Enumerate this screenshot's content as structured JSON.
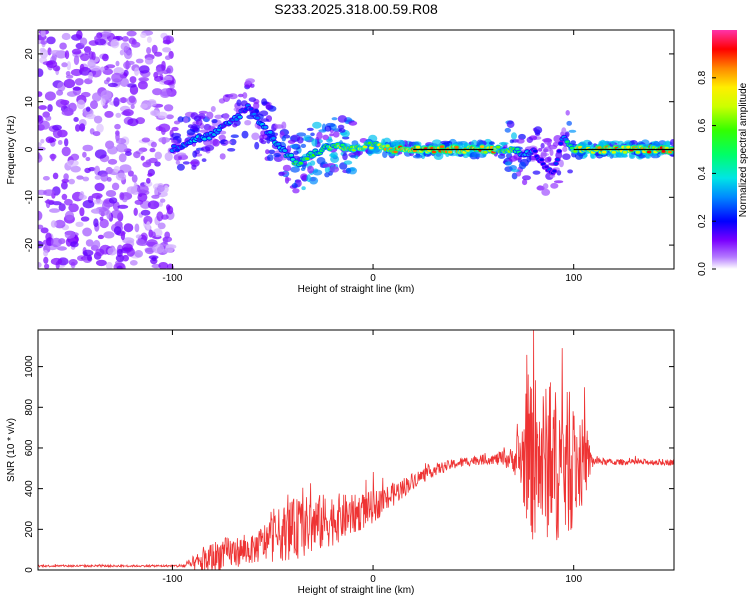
{
  "title": "S233.2025.318.00.59.R08",
  "chart_data": [
    {
      "type": "heatmap",
      "title": "S233.2025.318.00.59.R08",
      "xlabel": "Height of straight line (km)",
      "ylabel": "Frequency (Hz)",
      "xlim": [
        -167,
        150
      ],
      "ylim": [
        -25,
        25
      ],
      "xticks": [
        -100,
        0,
        100
      ],
      "yticks": [
        -20,
        -10,
        0,
        10,
        20
      ],
      "xtick_labels": [
        "-100",
        "0",
        "100"
      ],
      "ytick_labels": [
        "-20",
        "-10",
        "0",
        "10",
        "20"
      ],
      "colorbar": {
        "label": "Normalized spectral amplitude",
        "range": [
          0,
          1
        ],
        "ticks": [
          0.0,
          0.2,
          0.4,
          0.6,
          0.8
        ],
        "tick_labels": [
          "0.0",
          "0.2",
          "0.4",
          "0.6",
          "0.8"
        ],
        "colormap": "rainbow (white-violet at 0 to magenta at 1)"
      },
      "noise_region": {
        "x_range": [
          -167,
          -100
        ],
        "freq_range": [
          -25,
          25
        ],
        "amplitude": 0.1
      },
      "signal_ridge": {
        "x": [
          -100,
          -90,
          -80,
          -70,
          -62,
          -55,
          -45,
          -38,
          -30,
          -20,
          -10,
          0,
          10,
          20,
          40,
          60,
          70,
          75,
          80,
          85,
          90,
          95,
          100,
          110,
          130,
          150
        ],
        "freq": [
          0,
          2,
          3,
          6,
          9,
          5,
          0,
          -3,
          -1,
          1,
          0,
          1,
          0,
          0,
          0,
          0,
          0,
          -1,
          0,
          -3,
          -5,
          3,
          0,
          0,
          0,
          0
        ],
        "amplitude": [
          0.3,
          0.35,
          0.35,
          0.35,
          0.3,
          0.35,
          0.4,
          0.6,
          0.6,
          0.65,
          0.7,
          0.75,
          0.85,
          0.9,
          0.9,
          0.85,
          0.6,
          0.4,
          0.3,
          0.25,
          0.25,
          0.3,
          0.75,
          0.9,
          0.9,
          0.9
        ]
      }
    },
    {
      "type": "line",
      "xlabel": "Height of straight line (km)",
      "ylabel": "SNR (10 * v/v)",
      "xlim": [
        -167,
        150
      ],
      "ylim": [
        0,
        1180
      ],
      "xticks": [
        -100,
        0,
        100
      ],
      "yticks": [
        0,
        200,
        400,
        600,
        800,
        1000
      ],
      "xtick_labels": [
        "-100",
        "0",
        "100"
      ],
      "ytick_labels": [
        "0",
        "200",
        "400",
        "600",
        "800",
        "1000"
      ],
      "series": [
        {
          "name": "SNR",
          "color": "#ee3333",
          "envelope_x": [
            -167,
            -100,
            -95,
            -88,
            -80,
            -75,
            -60,
            -50,
            -40,
            -30,
            -20,
            -10,
            0,
            10,
            20,
            30,
            40,
            50,
            60,
            70,
            75,
            80,
            85,
            90,
            95,
            100,
            105,
            110,
            120,
            130,
            140,
            150
          ],
          "baseline": [
            20,
            20,
            20,
            30,
            60,
            80,
            100,
            160,
            200,
            220,
            250,
            270,
            310,
            370,
            440,
            490,
            520,
            540,
            545,
            545,
            545,
            540,
            530,
            520,
            520,
            520,
            530,
            535,
            530,
            530,
            530,
            530
          ],
          "noise_amplitude": [
            5,
            5,
            10,
            50,
            80,
            80,
            70,
            120,
            150,
            150,
            130,
            100,
            80,
            60,
            40,
            30,
            25,
            25,
            25,
            60,
            250,
            420,
            380,
            380,
            380,
            320,
            200,
            20,
            15,
            15,
            15,
            15
          ],
          "peak": {
            "x": 80,
            "y": 1180
          }
        }
      ]
    }
  ]
}
